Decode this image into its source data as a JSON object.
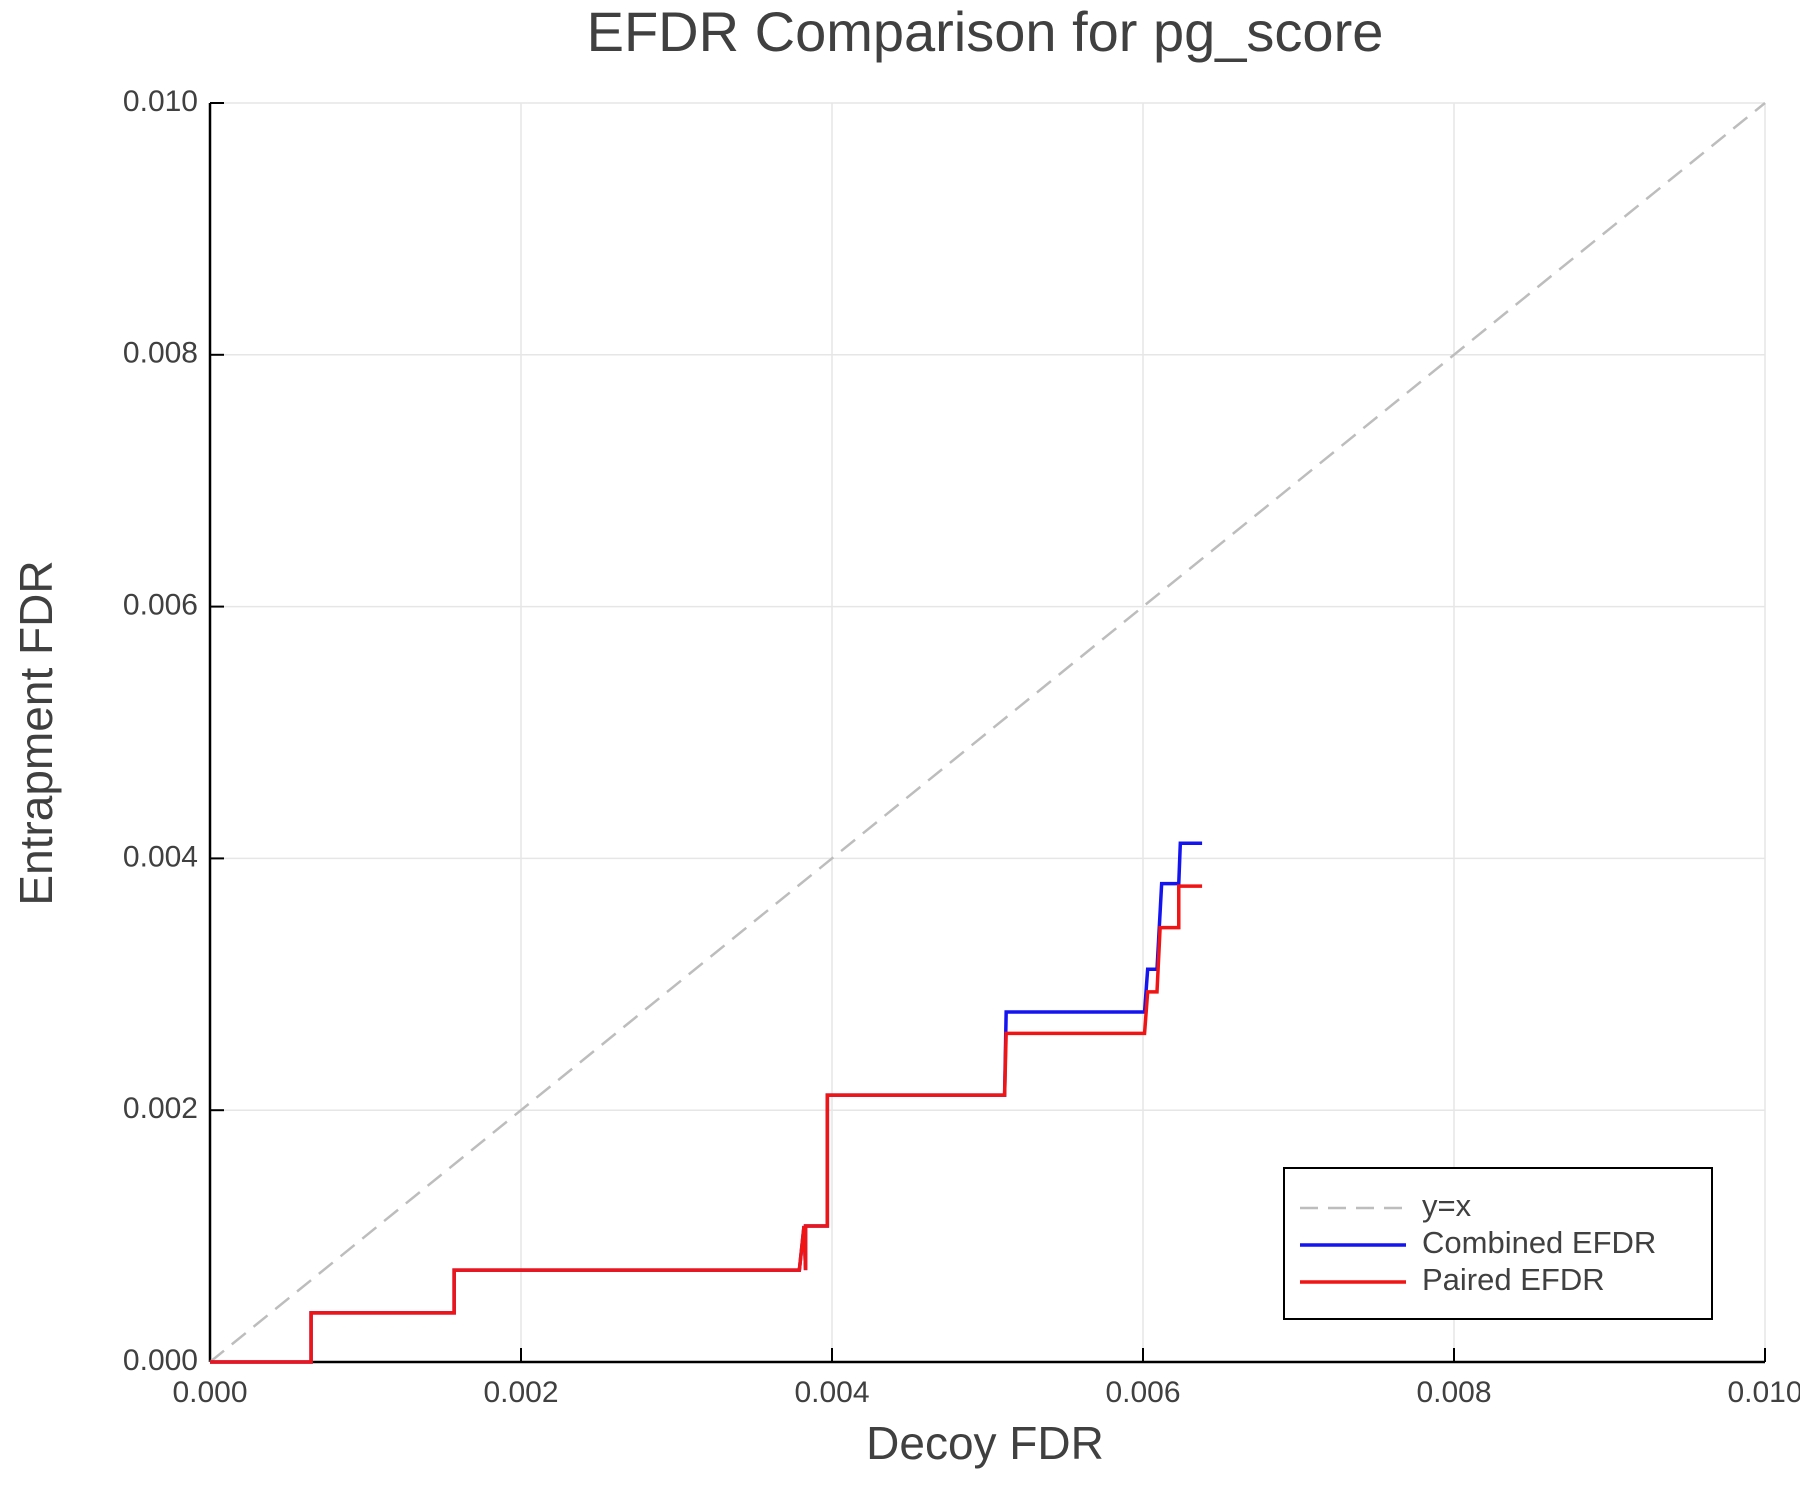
{
  "chart_data": {
    "type": "line",
    "title": "EFDR Comparison for pg_score",
    "x_label": "Decoy FDR",
    "y_label": "Entrapment FDR",
    "xlim": [
      0,
      0.01
    ],
    "ylim": [
      0,
      0.01
    ],
    "xticks": [
      {
        "value": 0,
        "label": "0.000"
      },
      {
        "value": 0.002,
        "label": "0.002"
      },
      {
        "value": 0.004,
        "label": "0.004"
      },
      {
        "value": 0.006,
        "label": "0.006"
      },
      {
        "value": 0.008,
        "label": "0.008"
      },
      {
        "value": 0.01,
        "label": "0.010"
      }
    ],
    "yticks": [
      {
        "value": 0,
        "label": "0.000"
      },
      {
        "value": 0.002,
        "label": "0.002"
      },
      {
        "value": 0.004,
        "label": "0.004"
      },
      {
        "value": 0.006,
        "label": "0.006"
      },
      {
        "value": 0.008,
        "label": "0.008"
      },
      {
        "value": 0.01,
        "label": "0.010"
      }
    ],
    "grid": true,
    "legend": "lower right",
    "series": [
      {
        "name": "y=x",
        "color": "#bdbdbd",
        "dashed": true,
        "x": [
          0,
          0.01
        ],
        "values": [
          0,
          0.01
        ]
      },
      {
        "name": "Combined EFDR",
        "color": "#1414f0",
        "dashed": false,
        "x": [
          0,
          0.00065,
          0.00065,
          0.00157,
          0.00157,
          0.00379,
          0.00382,
          0.00383,
          0.00383,
          0.00397,
          0.00397,
          0.00511,
          0.00512,
          0.00601,
          0.00603,
          0.00609,
          0.00612,
          0.00623,
          0.00624,
          0.00638
        ],
        "values": [
          0,
          0,
          0.00039,
          0.00039,
          0.00073,
          0.00073,
          0.00108,
          0.00073,
          0.00108,
          0.00108,
          0.00212,
          0.00212,
          0.00278,
          0.00278,
          0.00312,
          0.00312,
          0.0038,
          0.0038,
          0.00412,
          0.00412
        ]
      },
      {
        "name": "Paired EFDR",
        "color": "#f01414",
        "dashed": false,
        "x": [
          0,
          0.00065,
          0.00065,
          0.00157,
          0.00157,
          0.00379,
          0.00382,
          0.00383,
          0.00383,
          0.00397,
          0.00397,
          0.00511,
          0.00512,
          0.00601,
          0.00603,
          0.00609,
          0.00611,
          0.00623,
          0.00623,
          0.00638
        ],
        "values": [
          0,
          0,
          0.00039,
          0.00039,
          0.00073,
          0.00073,
          0.00108,
          0.00073,
          0.00108,
          0.00108,
          0.00212,
          0.00212,
          0.00261,
          0.00261,
          0.00294,
          0.00294,
          0.00345,
          0.00345,
          0.00378,
          0.00378
        ]
      }
    ]
  }
}
